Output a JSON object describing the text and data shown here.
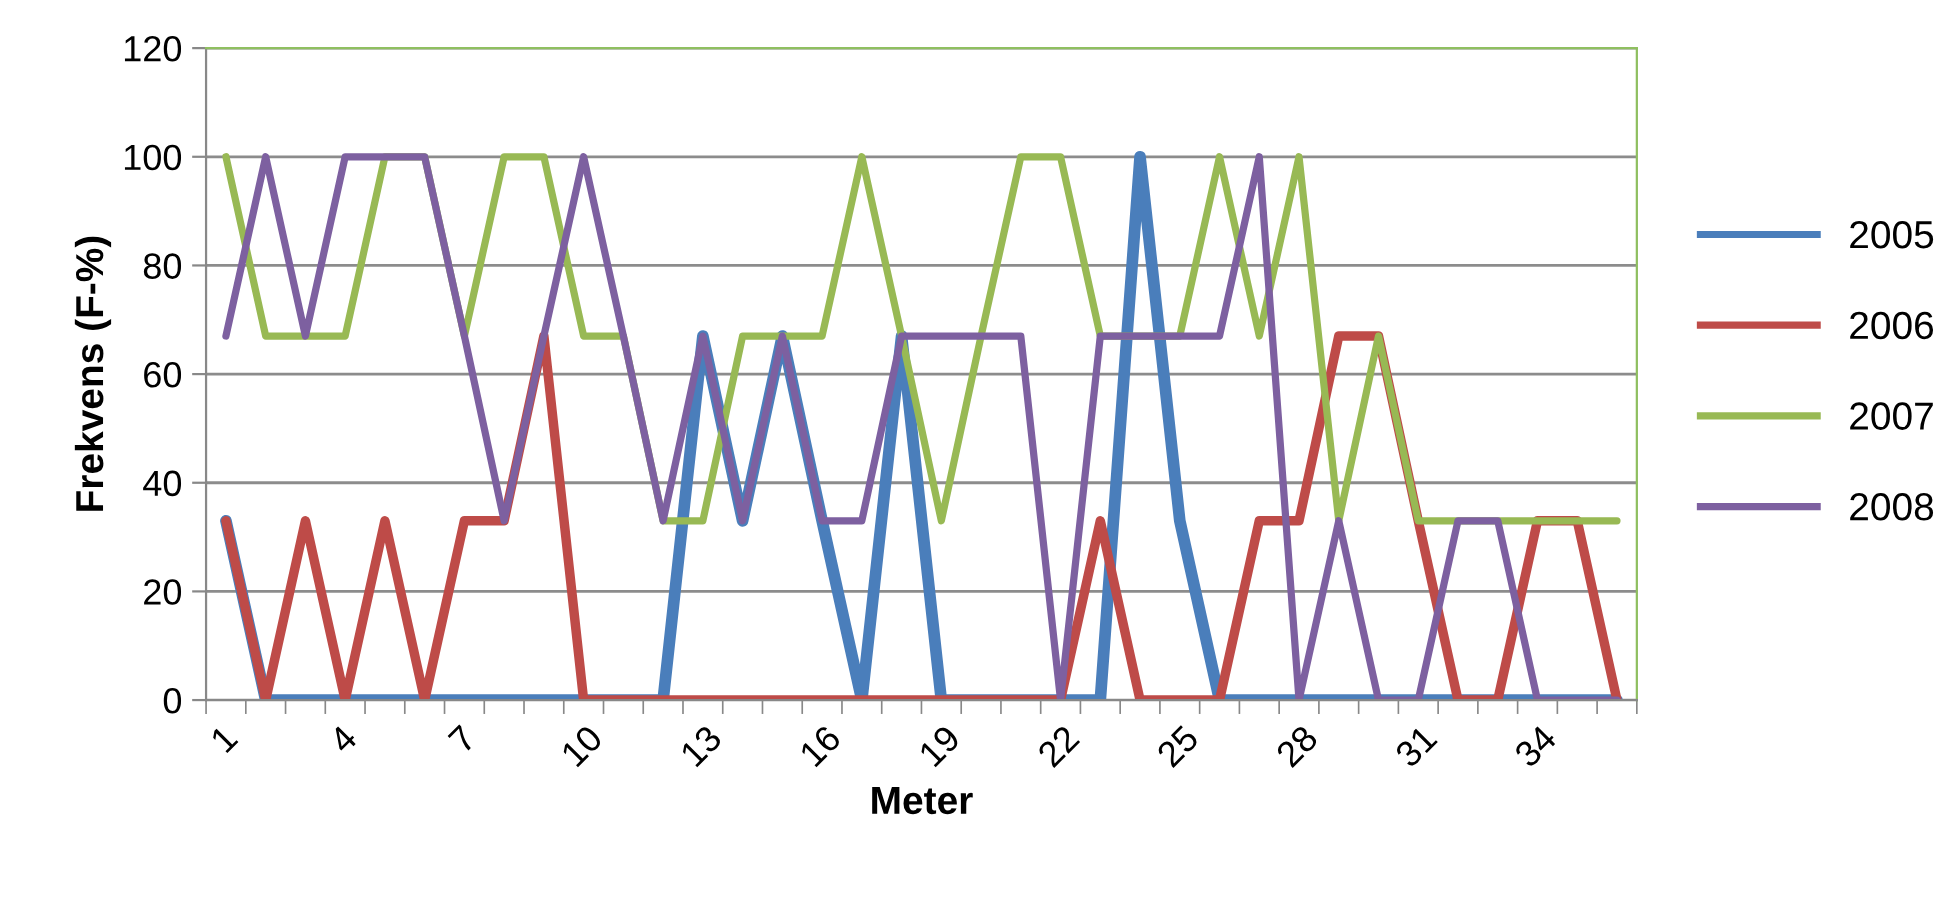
{
  "chart_data": {
    "type": "line",
    "xlabel": "Meter",
    "ylabel": "Frekvens (F-%)",
    "categories": [
      "1",
      null,
      null,
      "4",
      null,
      null,
      "7",
      null,
      null,
      "10",
      null,
      null,
      "13",
      null,
      null,
      "16",
      null,
      null,
      "19",
      null,
      null,
      "22",
      null,
      null,
      "25",
      null,
      null,
      "28",
      null,
      null,
      "31",
      null,
      null,
      "34",
      null,
      null
    ],
    "series": [
      {
        "name": "2005",
        "color": "#4a7ebb",
        "values": [
          33,
          0,
          0,
          0,
          0,
          0,
          0,
          0,
          0,
          0,
          0,
          0,
          67,
          33,
          67,
          33,
          0,
          67,
          0,
          0,
          0,
          0,
          0,
          100,
          33,
          0,
          0,
          0,
          0,
          0,
          0,
          0,
          0,
          0,
          0,
          0
        ]
      },
      {
        "name": "2006",
        "color": "#be4b48",
        "values": [
          33,
          0,
          33,
          0,
          33,
          0,
          33,
          33,
          67,
          0,
          0,
          0,
          0,
          0,
          0,
          0,
          0,
          0,
          0,
          0,
          0,
          0,
          33,
          0,
          0,
          0,
          33,
          33,
          67,
          67,
          33,
          0,
          0,
          33,
          33,
          0
        ]
      },
      {
        "name": "2007",
        "color": "#98b954",
        "values": [
          100,
          67,
          67,
          67,
          100,
          100,
          67,
          100,
          100,
          67,
          67,
          33,
          33,
          67,
          67,
          67,
          100,
          67,
          33,
          67,
          100,
          100,
          67,
          67,
          67,
          100,
          67,
          100,
          33,
          67,
          33,
          33,
          33,
          33,
          33,
          33
        ]
      },
      {
        "name": "2008",
        "color": "#7d60a0",
        "values": [
          67,
          100,
          67,
          100,
          100,
          100,
          67,
          33,
          67,
          100,
          67,
          33,
          67,
          33,
          67,
          33,
          33,
          67,
          67,
          67,
          67,
          0,
          67,
          67,
          67,
          67,
          100,
          0,
          33,
          0,
          0,
          33,
          33,
          0,
          0,
          0
        ]
      }
    ],
    "ylim": [
      0,
      120
    ],
    "yticks": [
      0,
      20,
      40,
      60,
      80,
      100,
      120
    ],
    "grid": "y",
    "legend": "right",
    "marker": "none",
    "line_style": "solid"
  }
}
